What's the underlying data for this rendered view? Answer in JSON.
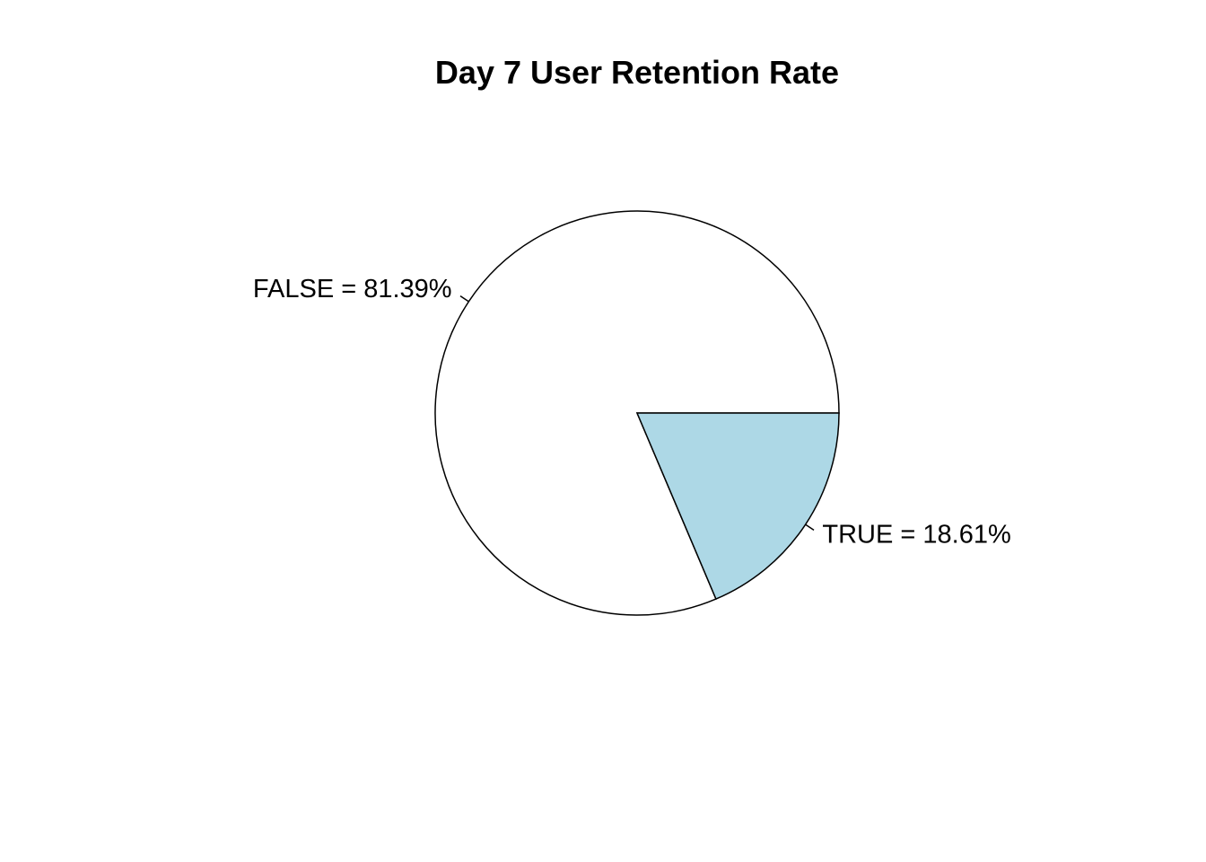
{
  "chart_data": {
    "type": "pie",
    "title": "Day 7 User Retention Rate",
    "start_angle_deg": 0,
    "direction": "counterclockwise",
    "slices": [
      {
        "category": "FALSE",
        "value": 81.39,
        "label": "FALSE = 81.39%",
        "color": "#ffffff"
      },
      {
        "category": "TRUE",
        "value": 18.61,
        "label": "TRUE = 18.61%",
        "color": "#add8e6"
      }
    ]
  }
}
